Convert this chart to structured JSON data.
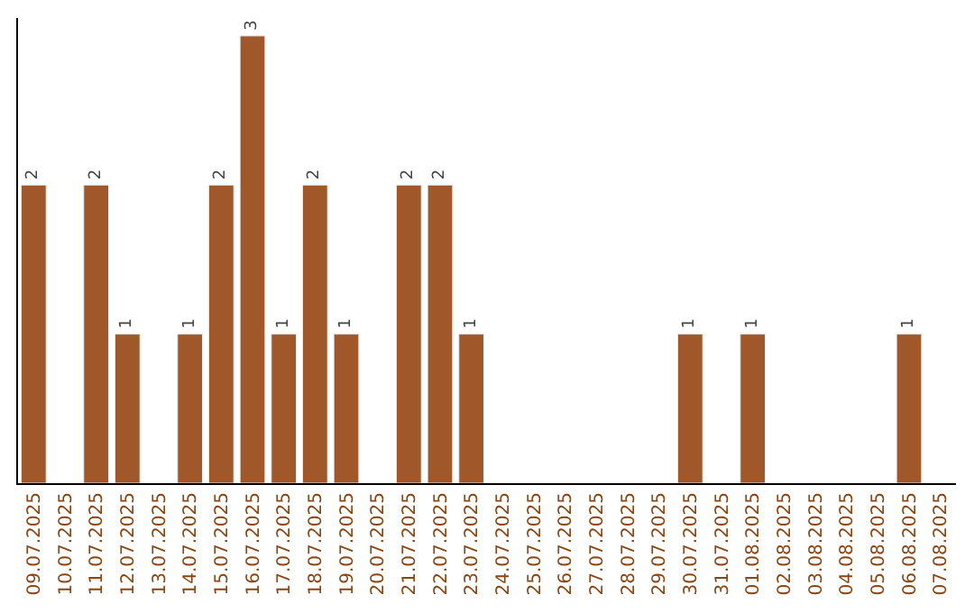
{
  "chart_data": {
    "type": "bar",
    "categories": [
      "09.07.2025",
      "10.07.2025",
      "11.07.2025",
      "12.07.2025",
      "13.07.2025",
      "14.07.2025",
      "15.07.2025",
      "16.07.2025",
      "17.07.2025",
      "18.07.2025",
      "19.07.2025",
      "20.07.2025",
      "21.07.2025",
      "22.07.2025",
      "23.07.2025",
      "24.07.2025",
      "25.07.2025",
      "26.07.2025",
      "27.07.2025",
      "28.07.2025",
      "29.07.2025",
      "30.07.2025",
      "31.07.2025",
      "01.08.2025",
      "02.08.2025",
      "03.08.2025",
      "04.08.2025",
      "05.08.2025",
      "06.08.2025",
      "07.08.2025"
    ],
    "values": [
      2,
      null,
      2,
      1,
      null,
      1,
      2,
      3,
      1,
      2,
      1,
      null,
      2,
      2,
      1,
      null,
      null,
      null,
      null,
      null,
      null,
      1,
      null,
      1,
      null,
      null,
      null,
      null,
      1,
      null
    ],
    "value_labels": [
      "2",
      null,
      "2",
      "1",
      null,
      "1",
      "2",
      "3",
      "1",
      "2",
      "1",
      null,
      "2",
      "2",
      "1",
      null,
      null,
      null,
      null,
      null,
      null,
      "1",
      null,
      "1",
      null,
      null,
      null,
      null,
      "1",
      null
    ],
    "color": "#a0572a",
    "tick_labels": "x"
  }
}
